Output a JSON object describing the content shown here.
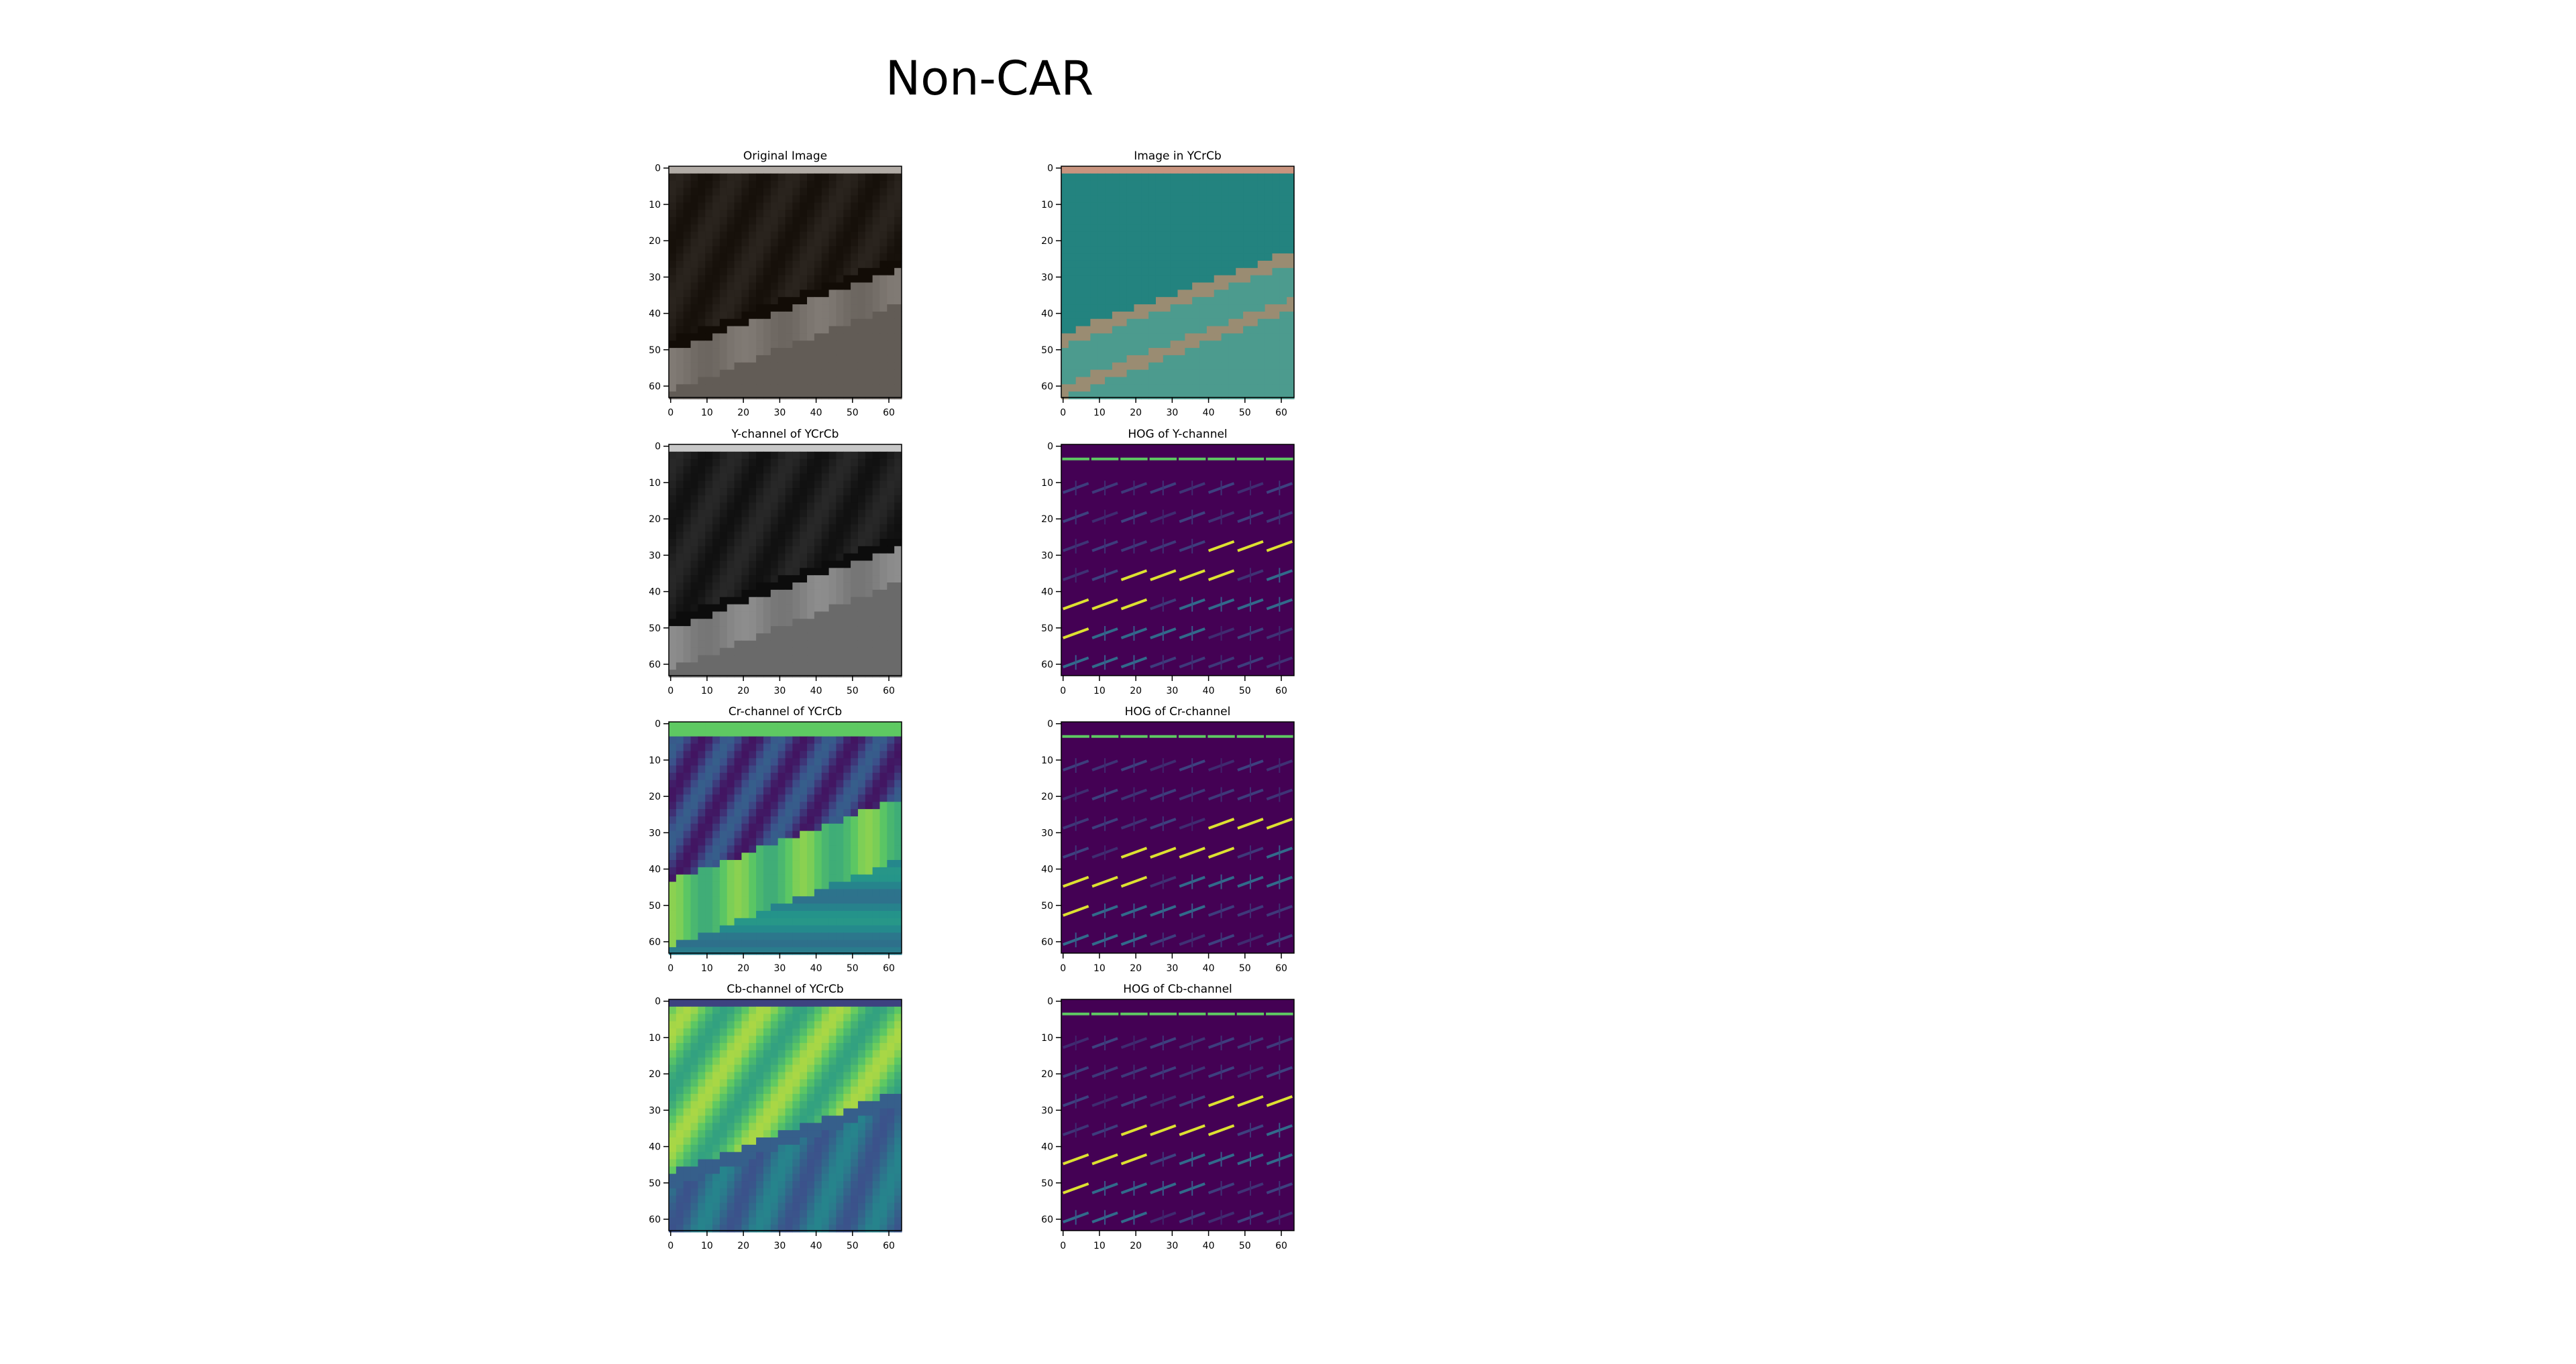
{
  "figure": {
    "suptitle": "Non-CAR",
    "axis_ticks": [
      "0",
      "10",
      "20",
      "30",
      "40",
      "50",
      "60"
    ],
    "panels": [
      {
        "title": "Original Image",
        "kind": "rgb"
      },
      {
        "title": "Image in YCrCb",
        "kind": "ycrcb"
      },
      {
        "title": "Y-channel of YCrCb",
        "kind": "gray"
      },
      {
        "title": "HOG of Y-channel",
        "kind": "hog"
      },
      {
        "title": "Cr-channel of YCrCb",
        "kind": "viridis-cr"
      },
      {
        "title": "HOG of Cr-channel",
        "kind": "hog"
      },
      {
        "title": "Cb-channel of YCrCb",
        "kind": "viridis-cb"
      },
      {
        "title": "HOG of Cb-channel",
        "kind": "hog"
      }
    ]
  },
  "colors": {
    "hog_background": "#440154",
    "viridis_low": "#440154",
    "viridis_mid": "#21918c",
    "viridis_high": "#fde725",
    "ycrcb_teal": "#23837f"
  }
}
